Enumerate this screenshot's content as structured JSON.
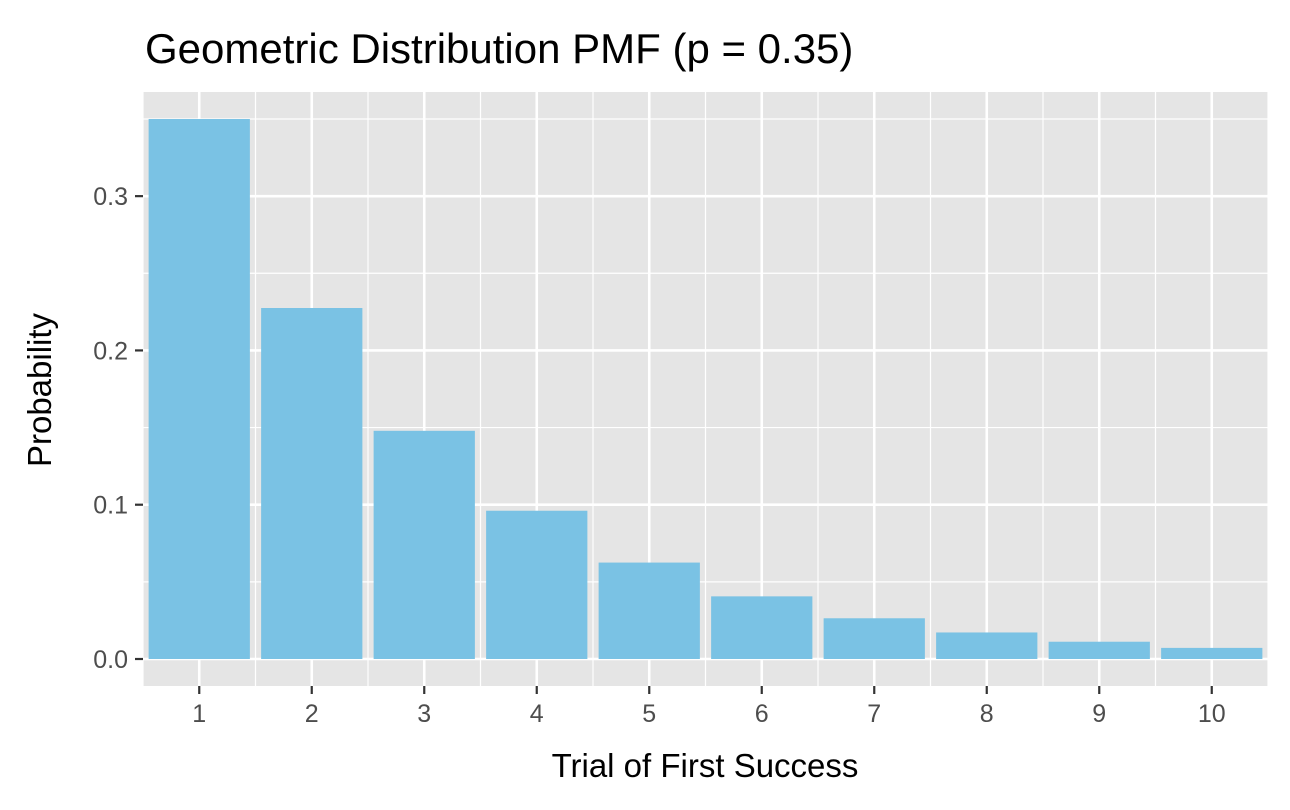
{
  "chart_data": {
    "type": "bar",
    "title": "Geometric Distribution PMF (p = 0.35)",
    "xlabel": "Trial of First Success",
    "ylabel": "Probability",
    "categories": [
      "1",
      "2",
      "3",
      "4",
      "5",
      "6",
      "7",
      "8",
      "9",
      "10"
    ],
    "values": [
      0.35,
      0.2275,
      0.1479,
      0.0961,
      0.0625,
      0.0406,
      0.0264,
      0.0172,
      0.0112,
      0.0072
    ],
    "y_ticks": [
      0.0,
      0.1,
      0.2,
      0.3
    ],
    "y_tick_labels": [
      "0.0",
      "0.1",
      "0.2",
      "0.3"
    ],
    "ylim": [
      -0.0175,
      0.3675
    ],
    "grid": true,
    "colors": {
      "bar": "#7AC2E4",
      "panel": "#E5E5E5",
      "grid": "#FFFFFF"
    }
  }
}
